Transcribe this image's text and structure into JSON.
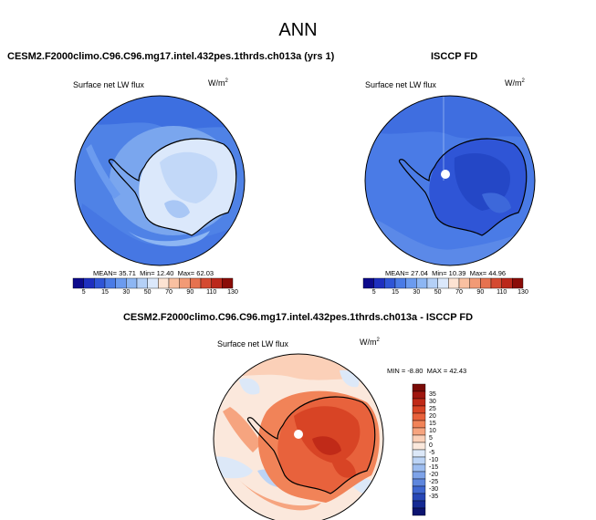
{
  "title": "ANN",
  "variable_label": "Surface net LW flux",
  "units": "W/m",
  "units_exp": "2",
  "panels": {
    "model": {
      "title": "CESM2.F2000climo.C96.C96.mg17.intel.432pes.1thrds.ch013a (yrs 1)",
      "mean": "35.71",
      "min": "12.40",
      "max": "62.03"
    },
    "obs": {
      "title": "ISCCP FD",
      "mean": "27.04",
      "min": "10.39",
      "max": "44.96"
    },
    "diff": {
      "title": "CESM2.F2000climo.C96.C96.mg17.intel.432pes.1thrds.ch013a - ISCCP FD",
      "min": "-8.80",
      "max": "42.43"
    }
  },
  "stat_labels": {
    "mean": "MEAN=",
    "min": "Min=",
    "max": "Max=",
    "min_caps": "MIN =",
    "max_caps": "MAX ="
  },
  "colorbar_main": {
    "ticks": [
      "5",
      "15",
      "30",
      "50",
      "70",
      "90",
      "110",
      "130"
    ],
    "colors": [
      "#0d0b8c",
      "#1e2fbf",
      "#2f55d6",
      "#4a7be6",
      "#6b9bef",
      "#8db6f3",
      "#b4d0f7",
      "#dbe8fb",
      "#fde3d2",
      "#f9c0a1",
      "#f29a75",
      "#e6724f",
      "#d44a31",
      "#bb281b",
      "#8a0c08"
    ]
  },
  "colorbar_diff": {
    "ticks": [
      "35",
      "30",
      "25",
      "20",
      "15",
      "10",
      "5",
      "0",
      "-5",
      "-10",
      "-15",
      "-20",
      "-25",
      "-30",
      "-35"
    ],
    "colors": [
      "#7a0b07",
      "#a01710",
      "#c02a18",
      "#d84425",
      "#e8623c",
      "#f18358",
      "#f6a47f",
      "#fbd0b8",
      "#fbe8dc",
      "#dce8f8",
      "#bcd4f6",
      "#9dbdf0",
      "#7ea3e8",
      "#5e86dd",
      "#3f67d0",
      "#2747b6",
      "#152a93",
      "#0c1470"
    ]
  },
  "colors": {
    "land": "#ffffff",
    "coast": "#000000"
  }
}
